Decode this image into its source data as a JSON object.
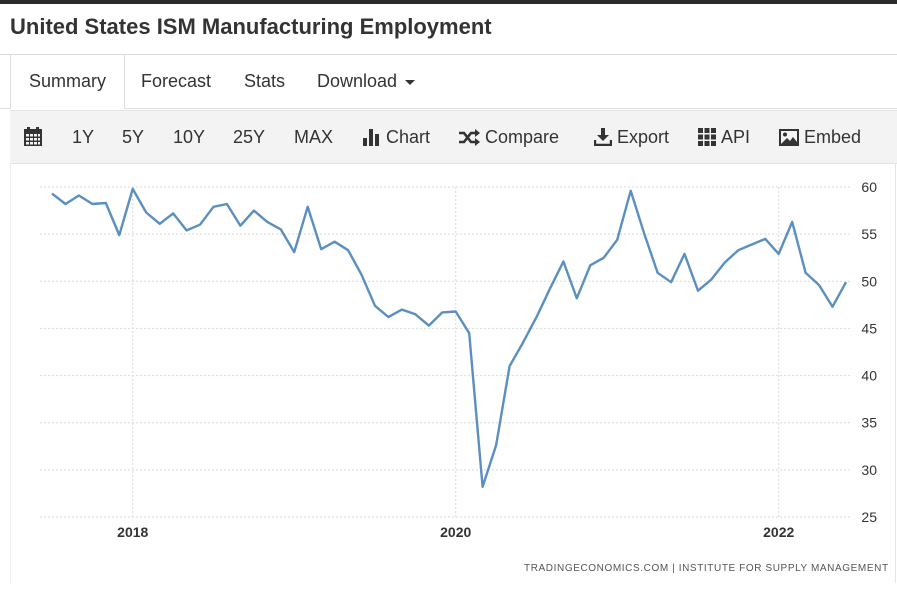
{
  "page": {
    "title": "United States ISM Manufacturing Employment"
  },
  "tabs": [
    {
      "label": "Summary"
    },
    {
      "label": "Forecast"
    },
    {
      "label": "Stats"
    },
    {
      "label": "Download"
    }
  ],
  "toolbar": {
    "ranges": [
      "1Y",
      "5Y",
      "10Y",
      "25Y",
      "MAX"
    ],
    "chart_label": "Chart",
    "compare_label": "Compare",
    "export_label": "Export",
    "api_label": "API",
    "embed_label": "Embed"
  },
  "credit": "TRADINGECONOMICS.COM  |  INSTITUTE FOR SUPPLY MANAGEMENT",
  "chart_data": {
    "type": "line",
    "title": "United States ISM Manufacturing Employment",
    "xlabel": "",
    "ylabel": "",
    "ylim": [
      25,
      60
    ],
    "y_ticks": [
      60,
      55,
      50,
      45,
      40,
      35,
      30,
      25
    ],
    "y_axis_side": "right",
    "x_ticks": [
      {
        "label": "2018",
        "year": 2018.0
      },
      {
        "label": "2020",
        "year": 2020.0
      },
      {
        "label": "2022",
        "year": 2022.0
      }
    ],
    "grid": true,
    "color": "#5b8fbf",
    "series": [
      {
        "name": "ISM Manufacturing Employment",
        "start": "2017-07",
        "frequency": "monthly",
        "values": [
          59.3,
          58.2,
          59.1,
          58.2,
          58.3,
          54.9,
          59.8,
          57.3,
          56.1,
          57.2,
          55.4,
          56.0,
          57.9,
          58.2,
          55.9,
          57.5,
          56.3,
          55.5,
          53.1,
          57.9,
          53.4,
          54.2,
          53.3,
          50.7,
          47.4,
          46.2,
          47.0,
          46.5,
          45.3,
          46.7,
          46.8,
          44.5,
          28.2,
          32.6,
          41.0,
          43.5,
          46.2,
          49.2,
          52.1,
          48.2,
          51.7,
          52.5,
          54.4,
          59.6,
          55.1,
          50.9,
          49.9,
          52.9,
          49.0,
          50.2,
          52.0,
          53.3,
          53.9,
          54.5,
          52.9,
          56.3,
          50.9,
          49.6,
          47.3,
          49.9
        ]
      }
    ]
  }
}
